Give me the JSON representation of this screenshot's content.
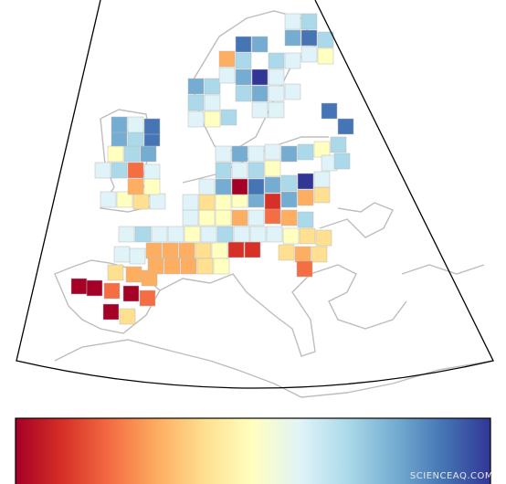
{
  "watermark": "SCIENCEAQ.COM"
}
